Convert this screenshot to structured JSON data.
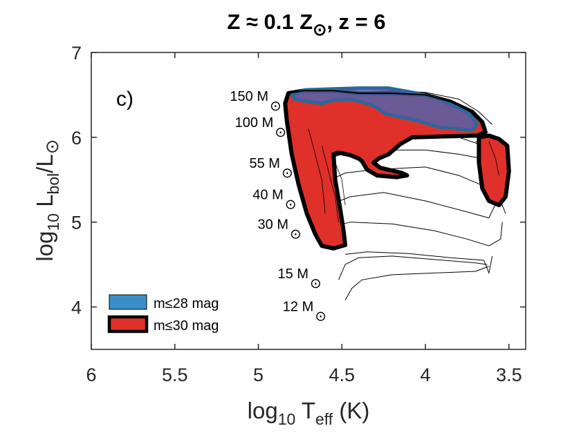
{
  "chart_data": {
    "type": "area",
    "title": {
      "main": "Z ≈ 0.1 Z",
      "sun": "⊙",
      "tail": ", z = 6"
    },
    "xlabel": {
      "pre": "log",
      "sub": "10",
      "mid": " T",
      "sub2": "eff",
      "post": " (K)"
    },
    "ylabel": {
      "pre": "log",
      "sub": "10",
      "mid": " L",
      "sub2": "bol",
      "slash": "/L",
      "sun": "⊙"
    },
    "x_reversed": true,
    "xlim": [
      6,
      3.4
    ],
    "ylim": [
      3.5,
      7
    ],
    "xticks": [
      6,
      5.5,
      5,
      4.5,
      4,
      3.5
    ],
    "xtick_labels": [
      "6",
      "5.5",
      "5",
      "4.5",
      "4",
      "3.5"
    ],
    "yticks": [
      4,
      5,
      6,
      7
    ],
    "ytick_labels": [
      "4",
      "5",
      "6",
      "7"
    ],
    "panel_label": "c)",
    "grid": false,
    "legend_position": "bottom-left",
    "legend": [
      {
        "label": "m≤28 mag",
        "color": "#3a8fc6"
      },
      {
        "label": "m≤30 mag",
        "color": "#e0302a"
      }
    ],
    "mass_labels": [
      {
        "text": "150 M",
        "x": 4.94,
        "y": 6.43
      },
      {
        "text": "100 M",
        "x": 4.91,
        "y": 6.12
      },
      {
        "text": "55 M",
        "x": 4.87,
        "y": 5.64
      },
      {
        "text": "40 M",
        "x": 4.85,
        "y": 5.27
      },
      {
        "text": "30 M",
        "x": 4.82,
        "y": 4.92
      },
      {
        "text": "15 M",
        "x": 4.7,
        "y": 4.34
      },
      {
        "text": "12 M",
        "x": 4.67,
        "y": 3.95
      }
    ],
    "sun_symbol": "⊙",
    "series": [
      {
        "name": "m≤30 mag",
        "regions": [
          [
            [
              4.82,
              6.52
            ],
            [
              4.73,
              6.55
            ],
            [
              4.55,
              6.55
            ],
            [
              4.4,
              6.52
            ],
            [
              4.2,
              6.52
            ],
            [
              4.0,
              6.5
            ],
            [
              3.85,
              6.42
            ],
            [
              3.72,
              6.3
            ],
            [
              3.66,
              6.18
            ],
            [
              3.64,
              6.06
            ],
            [
              3.69,
              6.02
            ],
            [
              3.9,
              6.01
            ],
            [
              4.08,
              6.0
            ],
            [
              4.15,
              5.92
            ],
            [
              4.22,
              5.8
            ],
            [
              4.28,
              5.75
            ],
            [
              4.31,
              5.7
            ],
            [
              4.27,
              5.64
            ],
            [
              4.14,
              5.58
            ],
            [
              4.11,
              5.55
            ],
            [
              4.17,
              5.53
            ],
            [
              4.29,
              5.55
            ],
            [
              4.35,
              5.62
            ],
            [
              4.38,
              5.72
            ],
            [
              4.4,
              5.75
            ],
            [
              4.45,
              5.79
            ],
            [
              4.52,
              5.82
            ],
            [
              4.55,
              5.8
            ],
            [
              4.54,
              5.5
            ],
            [
              4.51,
              5.15
            ],
            [
              4.49,
              4.9
            ],
            [
              4.48,
              4.73
            ],
            [
              4.55,
              4.69
            ],
            [
              4.62,
              4.72
            ],
            [
              4.66,
              4.86
            ],
            [
              4.71,
              5.1
            ],
            [
              4.76,
              5.45
            ],
            [
              4.8,
              5.8
            ],
            [
              4.83,
              6.2
            ],
            [
              4.84,
              6.4
            ]
          ],
          [
            [
              3.68,
              6.0
            ],
            [
              3.62,
              6.02
            ],
            [
              3.56,
              5.98
            ],
            [
              3.51,
              5.9
            ],
            [
              3.5,
              5.6
            ],
            [
              3.52,
              5.3
            ],
            [
              3.56,
              5.2
            ],
            [
              3.62,
              5.25
            ],
            [
              3.66,
              5.4
            ],
            [
              3.68,
              5.7
            ]
          ]
        ]
      },
      {
        "name": "m≤28 mag",
        "regions": [
          [
            [
              4.8,
              6.5
            ],
            [
              4.72,
              6.56
            ],
            [
              4.55,
              6.57
            ],
            [
              4.4,
              6.58
            ],
            [
              4.22,
              6.58
            ],
            [
              4.05,
              6.52
            ],
            [
              3.92,
              6.45
            ],
            [
              3.82,
              6.36
            ],
            [
              3.74,
              6.28
            ],
            [
              3.69,
              6.16
            ],
            [
              3.72,
              6.08
            ],
            [
              3.8,
              6.1
            ],
            [
              3.92,
              6.12
            ],
            [
              4.02,
              6.18
            ],
            [
              4.1,
              6.22
            ],
            [
              4.18,
              6.25
            ],
            [
              4.24,
              6.28
            ],
            [
              4.3,
              6.36
            ],
            [
              4.38,
              6.42
            ],
            [
              4.46,
              6.45
            ],
            [
              4.55,
              6.44
            ],
            [
              4.62,
              6.4
            ],
            [
              4.7,
              6.42
            ],
            [
              4.78,
              6.45
            ]
          ]
        ]
      }
    ]
  }
}
